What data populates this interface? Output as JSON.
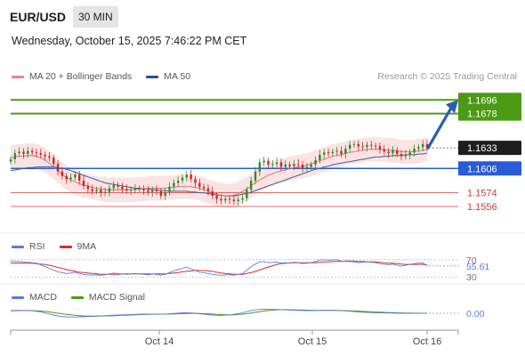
{
  "header": {
    "symbol": "EUR/USD",
    "timeframe": "30 MIN",
    "datetime": "Wednesday, October 15, 2025 7:46:22 PM CET"
  },
  "legend_main": {
    "ma20_label": "MA 20 + Bollinger Bands",
    "ma50_label": "MA 50",
    "credit": "Research © 2025 Trading Central"
  },
  "legend_rsi": {
    "rsi_label": "RSI",
    "ma_label": "9MA"
  },
  "legend_macd": {
    "macd_label": "MACD",
    "signal_label": "MACD Signal"
  },
  "colors": {
    "resistance": "#4a9a14",
    "support": "#2a5bd7",
    "level_red": "#d43a3a",
    "up_candle": "#2e8b2e",
    "down_candle": "#c62828",
    "bollinger_fill": "#fbd9d9",
    "ma20": "#e57373",
    "ma50": "#3a5f9e",
    "rsi": "#5a7be0",
    "rsi_ma": "#d32f2f",
    "macd": "#5a7be0",
    "macd_signal": "#4a9a14",
    "arrow": "#2b5bb5",
    "last_price_bg": "#1e1e1e"
  },
  "chart_data": [
    {
      "type": "candlestick",
      "title": "",
      "x_ticks": [
        "Oct 14",
        "Oct 15",
        "Oct 16"
      ],
      "price_levels": [
        {
          "value": 1.1696,
          "label": "1.1696",
          "kind": "resistance"
        },
        {
          "value": 1.1678,
          "label": "1.1678",
          "kind": "resistance"
        },
        {
          "value": 1.1633,
          "label": "1.1633",
          "kind": "last_price"
        },
        {
          "value": 1.1606,
          "label": "1.1606",
          "kind": "pivot"
        },
        {
          "value": 1.1574,
          "label": "1.1574",
          "kind": "support"
        },
        {
          "value": 1.1556,
          "label": "1.1556",
          "kind": "support"
        }
      ],
      "ylim": [
        1.1535,
        1.1715
      ],
      "close": [
        1.1618,
        1.1626,
        1.1628,
        1.1625,
        1.1629,
        1.1627,
        1.1626,
        1.1624,
        1.1622,
        1.162,
        1.1612,
        1.1602,
        1.1596,
        1.1592,
        1.1594,
        1.1598,
        1.159,
        1.1583,
        1.1579,
        1.1576,
        1.1578,
        1.1574,
        1.1575,
        1.158,
        1.1584,
        1.1582,
        1.1579,
        1.1577,
        1.1578,
        1.158,
        1.1579,
        1.1577,
        1.1575,
        1.1578,
        1.1576,
        1.157,
        1.1575,
        1.1582,
        1.1587,
        1.159,
        1.1594,
        1.1598,
        1.1592,
        1.1587,
        1.1582,
        1.158,
        1.1576,
        1.157,
        1.1566,
        1.1564,
        1.1566,
        1.1565,
        1.1563,
        1.1565,
        1.1567,
        1.1578,
        1.159,
        1.1602,
        1.1614,
        1.1616,
        1.1611,
        1.1612,
        1.1614,
        1.1608,
        1.1611,
        1.1609,
        1.1612,
        1.1611,
        1.1607,
        1.1608,
        1.1611,
        1.1617,
        1.1624,
        1.1627,
        1.1626,
        1.1628,
        1.1629,
        1.1625,
        1.1632,
        1.1637,
        1.1638,
        1.1635,
        1.1634,
        1.1637,
        1.1636,
        1.1635,
        1.1631,
        1.1628,
        1.1626,
        1.163,
        1.1625,
        1.1622,
        1.1624,
        1.1627,
        1.1632,
        1.1634,
        1.1638,
        1.1633
      ],
      "ma20": [
        1.162,
        1.1621,
        1.1622,
        1.1622,
        1.1623,
        1.1623,
        1.1622,
        1.162,
        1.1617,
        1.1613,
        1.1608,
        1.1603,
        1.1598,
        1.1594,
        1.1591,
        1.1588,
        1.1586,
        1.1584,
        1.1583,
        1.1581,
        1.158,
        1.1579,
        1.1578,
        1.1578,
        1.1578,
        1.1578,
        1.1578,
        1.1578,
        1.1578,
        1.1578,
        1.1579,
        1.1579,
        1.158,
        1.158,
        1.158,
        1.158,
        1.158,
        1.1581,
        1.1581,
        1.1582,
        1.1582,
        1.1582,
        1.1582,
        1.1581,
        1.158,
        1.1578,
        1.1576,
        1.1574,
        1.1572,
        1.1571,
        1.157,
        1.157,
        1.1571,
        1.1573,
        1.1576,
        1.1579,
        1.1583,
        1.1587,
        1.1591,
        1.1594,
        1.1597,
        1.1599,
        1.1601,
        1.1603,
        1.1604,
        1.1606,
        1.1607,
        1.1608,
        1.1609,
        1.161,
        1.1612,
        1.1614,
        1.1616,
        1.1618,
        1.162,
        1.1622,
        1.1623,
        1.1624,
        1.1626,
        1.1627,
        1.1628,
        1.1629,
        1.163,
        1.1631,
        1.1631,
        1.1631,
        1.1631,
        1.1631,
        1.163,
        1.163,
        1.1629,
        1.1628,
        1.1628,
        1.1628,
        1.1628,
        1.1629,
        1.163,
        1.1631
      ],
      "ma50": [
        1.1603,
        1.1604,
        1.1605,
        1.1606,
        1.1607,
        1.1607,
        1.1608,
        1.1608,
        1.1608,
        1.1608,
        1.1608,
        1.1607,
        1.1606,
        1.1605,
        1.1603,
        1.1601,
        1.1599,
        1.1597,
        1.1595,
        1.1593,
        1.1591,
        1.1589,
        1.1587,
        1.1586,
        1.1585,
        1.1584,
        1.1583,
        1.1582,
        1.1581,
        1.158,
        1.158,
        1.1579,
        1.1579,
        1.1578,
        1.1578,
        1.1577,
        1.1577,
        1.1576,
        1.1576,
        1.1576,
        1.1576,
        1.1576,
        1.1575,
        1.1575,
        1.1574,
        1.1574,
        1.1573,
        1.1572,
        1.1571,
        1.1571,
        1.157,
        1.157,
        1.157,
        1.1571,
        1.1572,
        1.1573,
        1.1575,
        1.1577,
        1.1579,
        1.1581,
        1.1583,
        1.1585,
        1.1587,
        1.1589,
        1.1591,
        1.1593,
        1.1595,
        1.1597,
        1.1599,
        1.1601,
        1.1603,
        1.1605,
        1.1606,
        1.1608,
        1.1609,
        1.1611,
        1.1612,
        1.1613,
        1.1614,
        1.1615,
        1.1616,
        1.1617,
        1.1618,
        1.1619,
        1.162,
        1.1621,
        1.1621,
        1.1622,
        1.1622,
        1.1623,
        1.1623,
        1.1623,
        1.1624,
        1.1624,
        1.1624,
        1.1625,
        1.1625,
        1.1626
      ],
      "bollinger_width": 0.0016
    },
    {
      "type": "line",
      "title": "RSI",
      "y_ticks": [
        "70",
        "30"
      ],
      "last_value_label": "55.61",
      "ylim": [
        20,
        80
      ],
      "rsi": [
        67,
        66,
        66,
        65,
        64,
        63,
        62,
        58,
        54,
        50,
        46,
        42,
        40,
        38,
        39,
        41,
        38,
        36,
        35,
        34,
        35,
        34,
        35,
        37,
        39,
        38,
        37,
        36,
        37,
        38,
        37,
        36,
        35,
        37,
        36,
        34,
        36,
        40,
        44,
        47,
        50,
        53,
        49,
        45,
        41,
        40,
        38,
        36,
        35,
        34,
        35,
        35,
        34,
        36,
        38,
        46,
        54,
        60,
        65,
        66,
        63,
        64,
        65,
        62,
        63,
        62,
        64,
        63,
        61,
        62,
        63,
        66,
        69,
        70,
        69,
        70,
        70,
        67,
        66,
        66,
        65,
        63,
        64,
        65,
        64,
        63,
        61,
        59,
        58,
        60,
        57,
        55,
        57,
        59,
        61,
        62,
        63,
        56
      ],
      "ma9": [
        62,
        62,
        62,
        62,
        62,
        62,
        61,
        60,
        59,
        57,
        55,
        52,
        50,
        47,
        45,
        43,
        41,
        40,
        39,
        38,
        37,
        36,
        36,
        36,
        36,
        36,
        37,
        37,
        37,
        37,
        37,
        37,
        37,
        37,
        37,
        37,
        37,
        38,
        39,
        40,
        42,
        43,
        44,
        45,
        45,
        45,
        44,
        43,
        41,
        39,
        38,
        37,
        36,
        36,
        36,
        38,
        40,
        43,
        46,
        50,
        53,
        56,
        59,
        61,
        62,
        63,
        63,
        63,
        63,
        63,
        63,
        63,
        64,
        65,
        65,
        66,
        66,
        66,
        67,
        67,
        67,
        66,
        66,
        65,
        65,
        65,
        64,
        63,
        62,
        62,
        61,
        60,
        59,
        59,
        59,
        59,
        59,
        58
      ]
    },
    {
      "type": "line",
      "title": "MACD",
      "last_value_label": "0.00",
      "ylim": [
        -1,
        1
      ],
      "macd": [
        0.3,
        0.32,
        0.33,
        0.32,
        0.31,
        0.28,
        0.22,
        0.14,
        0.04,
        -0.08,
        -0.2,
        -0.3,
        -0.36,
        -0.4,
        -0.42,
        -0.42,
        -0.41,
        -0.39,
        -0.37,
        -0.35,
        -0.32,
        -0.3,
        -0.28,
        -0.25,
        -0.22,
        -0.2,
        -0.18,
        -0.16,
        -0.14,
        -0.12,
        -0.11,
        -0.1,
        -0.09,
        -0.09,
        -0.1,
        -0.11,
        -0.1,
        -0.06,
        -0.02,
        0.02,
        0.05,
        0.06,
        0.04,
        0.0,
        -0.05,
        -0.1,
        -0.15,
        -0.2,
        -0.23,
        -0.24,
        -0.22,
        -0.18,
        -0.12,
        -0.04,
        0.06,
        0.18,
        0.3,
        0.38,
        0.43,
        0.45,
        0.44,
        0.43,
        0.42,
        0.4,
        0.38,
        0.36,
        0.34,
        0.32,
        0.31,
        0.3,
        0.3,
        0.31,
        0.32,
        0.33,
        0.33,
        0.33,
        0.32,
        0.3,
        0.27,
        0.23,
        0.19,
        0.15,
        0.12,
        0.1,
        0.08,
        0.06,
        0.05,
        0.04,
        0.03,
        0.02,
        0.01,
        0.0,
        0.0,
        0.0,
        0.0,
        0.0,
        0.0,
        0.0
      ],
      "signal": [
        0.28,
        0.29,
        0.3,
        0.31,
        0.31,
        0.3,
        0.28,
        0.25,
        0.21,
        0.15,
        0.08,
        0.01,
        -0.06,
        -0.12,
        -0.18,
        -0.23,
        -0.27,
        -0.3,
        -0.31,
        -0.32,
        -0.32,
        -0.31,
        -0.3,
        -0.29,
        -0.27,
        -0.25,
        -0.23,
        -0.21,
        -0.19,
        -0.17,
        -0.15,
        -0.14,
        -0.12,
        -0.11,
        -0.11,
        -0.1,
        -0.1,
        -0.09,
        -0.08,
        -0.06,
        -0.04,
        -0.02,
        -0.01,
        -0.01,
        -0.02,
        -0.04,
        -0.06,
        -0.09,
        -0.12,
        -0.15,
        -0.17,
        -0.18,
        -0.17,
        -0.14,
        -0.1,
        -0.04,
        0.03,
        0.11,
        0.18,
        0.25,
        0.31,
        0.35,
        0.38,
        0.4,
        0.4,
        0.4,
        0.39,
        0.38,
        0.36,
        0.35,
        0.34,
        0.33,
        0.32,
        0.32,
        0.32,
        0.32,
        0.32,
        0.31,
        0.3,
        0.28,
        0.26,
        0.24,
        0.21,
        0.19,
        0.16,
        0.14,
        0.12,
        0.1,
        0.08,
        0.07,
        0.05,
        0.04,
        0.03,
        0.02,
        0.01,
        0.01,
        0.0,
        0.0
      ]
    }
  ]
}
